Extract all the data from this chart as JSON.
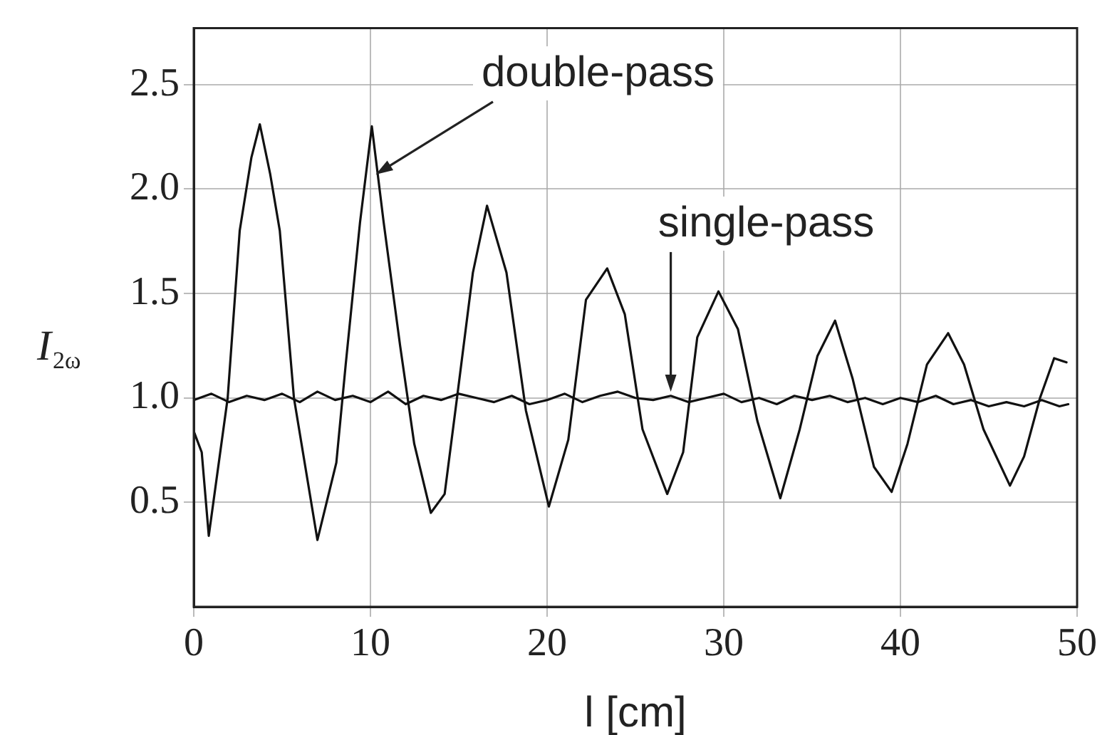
{
  "chart_data": {
    "type": "line",
    "xlabel": "l [cm]",
    "ylabel": "I$_{2ω}$",
    "xlim": [
      0,
      50
    ],
    "ylim": [
      0,
      2.77
    ],
    "xticks": [
      0,
      10,
      20,
      30,
      40,
      50
    ],
    "yticks": [
      0.5,
      {
        "value": 1,
        "label": "1.0"
      },
      1.5,
      {
        "value": 2,
        "label": "2.0"
      },
      2.5
    ],
    "grid": true,
    "legend": false,
    "marker": "none",
    "line_style": "solid",
    "series": [
      {
        "color": "#111111",
        "x": [
          0,
          0.45,
          0.85,
          1.92,
          2.6,
          3.26,
          3.74,
          4.33,
          4.87,
          5.67,
          7.0,
          8.07,
          8.6,
          9.41,
          10.08,
          10.75,
          11.68,
          12.48,
          13.42,
          14.2,
          14.9,
          15.8,
          16.6,
          17.7,
          18.8,
          20.1,
          21.2,
          22.2,
          23.4,
          24.4,
          25.4,
          26.8,
          27.7,
          28.5,
          29.7,
          30.8,
          31.9,
          33.2,
          34.3,
          35.3,
          36.3,
          37.3,
          38.5,
          39.5,
          40.4,
          41.5,
          42.7,
          43.6,
          44.7,
          46.2,
          47.0,
          47.9,
          48.7,
          49.4
        ],
        "values": [
          0.84,
          0.74,
          0.34,
          1.0,
          1.8,
          2.15,
          2.31,
          2.07,
          1.8,
          1.0,
          0.32,
          0.69,
          1.16,
          1.84,
          2.3,
          1.84,
          1.25,
          0.78,
          0.45,
          0.54,
          1.0,
          1.6,
          1.92,
          1.6,
          0.94,
          0.48,
          0.8,
          1.47,
          1.62,
          1.4,
          0.85,
          0.54,
          0.74,
          1.29,
          1.51,
          1.33,
          0.89,
          0.52,
          0.85,
          1.2,
          1.37,
          1.09,
          0.67,
          0.55,
          0.78,
          1.16,
          1.31,
          1.16,
          0.85,
          0.58,
          0.72,
          1.0,
          1.19,
          1.17
        ]
      },
      {
        "color": "#111111",
        "x": [
          0,
          1,
          2,
          3,
          4,
          5,
          6,
          7,
          8,
          9,
          10,
          11,
          12,
          13,
          14,
          15,
          16,
          17,
          18,
          19,
          20,
          21,
          22,
          23,
          24,
          25,
          26,
          27,
          28,
          29,
          30,
          31,
          32,
          33,
          34,
          35,
          36,
          37,
          38,
          39,
          40,
          41,
          42,
          43,
          44,
          45,
          46,
          47,
          48,
          49,
          49.5
        ],
        "values": [
          0.99,
          1.02,
          0.98,
          1.01,
          0.99,
          1.02,
          0.98,
          1.03,
          0.99,
          1.01,
          0.98,
          1.03,
          0.97,
          1.01,
          0.99,
          1.02,
          1.0,
          0.98,
          1.01,
          0.97,
          0.99,
          1.02,
          0.98,
          1.01,
          1.03,
          1.0,
          0.99,
          1.01,
          0.98,
          1.0,
          1.02,
          0.98,
          1.0,
          0.97,
          1.01,
          0.99,
          1.01,
          0.98,
          1.0,
          0.97,
          1.0,
          0.98,
          1.01,
          0.97,
          0.99,
          0.96,
          0.98,
          0.96,
          0.99,
          0.96,
          0.97
        ]
      }
    ],
    "annotations": [
      {
        "text": "double-pass",
        "x": 10.3,
        "y": 2.07
      },
      {
        "text": "single-pass",
        "x": 27,
        "y": 1.03
      }
    ]
  }
}
